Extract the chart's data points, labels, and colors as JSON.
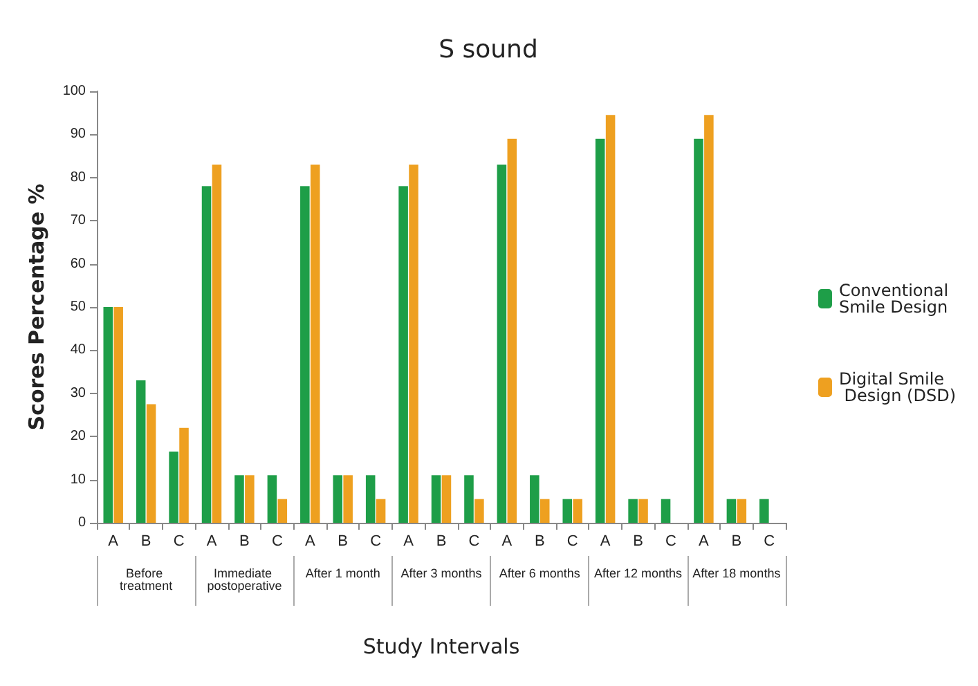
{
  "chart_data": {
    "type": "bar",
    "title": "S sound",
    "xlabel": "Study Intervals",
    "ylabel": "Scores Percentage %",
    "categories": [
      "A",
      "B",
      "C",
      "A",
      "B",
      "C",
      "A",
      "B",
      "C",
      "A",
      "B",
      "C",
      "A",
      "B",
      "C",
      "A",
      "B",
      "C",
      "A",
      "B",
      "C"
    ],
    "annotations": [
      "Before treatment",
      "Immediate postoperative",
      "After 1 month",
      "After 3 months",
      "After 6 months",
      "After 12 months",
      "After 18 months"
    ],
    "series": [
      {
        "name": "Conventional Smile Design",
        "color": "#1e9e48",
        "values": [
          50,
          33,
          16.5,
          78,
          11,
          11,
          78,
          11,
          11,
          78,
          11,
          11,
          83,
          11,
          5.5,
          89,
          5.5,
          5.5,
          89,
          5.5,
          5.5
        ]
      },
      {
        "name": "Digital Smile Design (DSD)",
        "color": "#eea020",
        "values": [
          50,
          27.5,
          22,
          83,
          11,
          5.5,
          83,
          11,
          5.5,
          83,
          11,
          5.5,
          89,
          5.5,
          5.5,
          94.5,
          5.5,
          0,
          94.5,
          5.5,
          0
        ]
      }
    ],
    "ylim": [
      0,
      100
    ],
    "yticks": [
      0,
      10,
      20,
      30,
      40,
      50,
      60,
      70,
      80,
      90,
      100
    ],
    "grid": false,
    "legend": "right"
  }
}
